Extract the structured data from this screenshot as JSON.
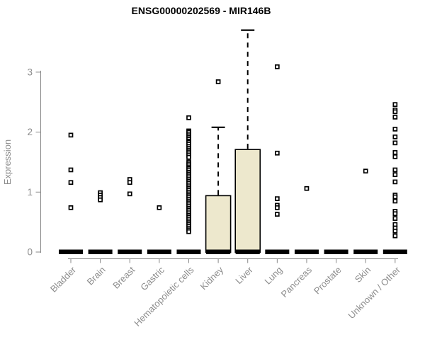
{
  "chart_data": {
    "type": "boxplot",
    "title": "ENSG00000202569 - MIR146B",
    "ylabel": "Expression",
    "xlabel": "",
    "ylim": [
      0,
      3.75
    ],
    "yticks": [
      0,
      1,
      2,
      3
    ],
    "grid": false,
    "legend": "none",
    "colors": {
      "box_fill": "#EDE8CD",
      "axis_line": "#878787",
      "axis_text": "#8C8C8C",
      "data": "#000000",
      "background": "#FFFFFF"
    },
    "point_shape": "open-square",
    "categories": [
      {
        "label": "Bladder",
        "median": 0,
        "points": [
          1.95,
          1.37,
          1.16,
          0.74
        ]
      },
      {
        "label": "Brain",
        "median": 0,
        "points": [
          0.99,
          0.95,
          0.91,
          0.87
        ]
      },
      {
        "label": "Breast",
        "median": 0,
        "points": [
          1.21,
          1.16,
          0.97
        ]
      },
      {
        "label": "Gastric",
        "median": 0,
        "points": [
          0.74
        ]
      },
      {
        "label": "Hematopoietic cells",
        "median": 0,
        "points": [
          2.24,
          2.02,
          2.0,
          1.97,
          1.94,
          1.91,
          1.88,
          1.85,
          1.83,
          1.8,
          1.76,
          1.73,
          1.7,
          1.67,
          1.64,
          1.61,
          1.58,
          1.5,
          1.47,
          1.44,
          1.41,
          1.39,
          1.36,
          1.33,
          1.3,
          1.27,
          1.24,
          1.21,
          1.18,
          1.15,
          1.12,
          1.09,
          1.06,
          1.03,
          1.0,
          0.97,
          0.94,
          0.91,
          0.88,
          0.85,
          0.82,
          0.79,
          0.76,
          0.73,
          0.7,
          0.67,
          0.64,
          0.61,
          0.58,
          0.55,
          0.52,
          0.49,
          0.46,
          0.43,
          0.4,
          0.37,
          0.34
        ]
      },
      {
        "label": "Kidney",
        "median": 0,
        "box": {
          "q1": 0,
          "q3": 0.94,
          "whisker_high": 2.08
        },
        "points": [
          2.84
        ]
      },
      {
        "label": "Liver",
        "median": 0,
        "box": {
          "q1": 0,
          "q3": 1.71,
          "whisker_high": 3.7
        },
        "points": []
      },
      {
        "label": "Lung",
        "median": 0,
        "points": [
          3.09,
          1.65,
          0.89,
          0.78,
          0.74,
          0.63
        ]
      },
      {
        "label": "Pancreas",
        "median": 0,
        "points": [
          1.06
        ]
      },
      {
        "label": "Prostate",
        "median": 0,
        "points": []
      },
      {
        "label": "Skin",
        "median": 0,
        "points": [
          1.35
        ]
      },
      {
        "label": "Unknown / Other",
        "median": 0,
        "points": [
          2.46,
          2.37,
          2.34,
          2.25,
          2.05,
          1.92,
          1.82,
          1.66,
          1.59,
          1.37,
          1.29,
          1.17,
          0.95,
          0.92,
          0.85,
          0.68,
          0.64,
          0.56,
          0.46,
          0.4,
          0.35,
          0.27
        ]
      }
    ]
  }
}
